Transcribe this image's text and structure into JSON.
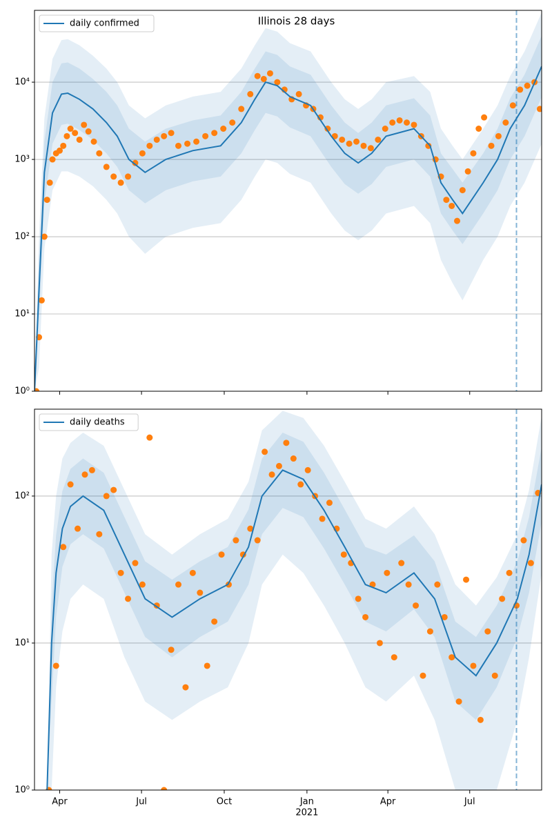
{
  "chart_data": [
    {
      "type": "line",
      "title": "Illinois 28 days",
      "xlim": [
        0,
        564
      ],
      "ylim": [
        1,
        85000
      ],
      "log_y": true,
      "grid": "y",
      "legend": "upper left",
      "vline": 536,
      "yticks": [
        {
          "value": 1,
          "label": "10⁰"
        },
        {
          "value": 10,
          "label": "10¹"
        },
        {
          "value": 100,
          "label": "10²"
        },
        {
          "value": 1000,
          "label": "10³"
        },
        {
          "value": 10000,
          "label": "10⁴"
        }
      ],
      "series": [
        {
          "name": "daily confirmed",
          "color": "#1f77b4",
          "x": [
            0,
            5,
            11,
            20,
            30,
            37,
            50,
            65,
            80,
            92,
            105,
            123,
            146,
            176,
            207,
            230,
            245,
            257,
            270,
            284,
            307,
            330,
            345,
            360,
            375,
            391,
            422,
            440,
            452,
            465,
            476,
            499,
            515,
            529,
            545,
            564
          ],
          "values": [
            1,
            20,
            680,
            4000,
            7000,
            7200,
            6000,
            4500,
            3000,
            2000,
            1000,
            680,
            1000,
            1300,
            1500,
            3000,
            6000,
            10000,
            9000,
            6500,
            5000,
            2000,
            1200,
            900,
            1200,
            2000,
            2500,
            1500,
            500,
            300,
            200,
            500,
            1000,
            2500,
            5000,
            16000
          ],
          "bands": [
            {
              "lower": [
                1,
                2,
                70,
                400,
                700,
                700,
                600,
                450,
                300,
                200,
                100,
                60,
                100,
                130,
                150,
                300,
                600,
                1000,
                900,
                650,
                500,
                200,
                120,
                90,
                120,
                200,
                250,
                150,
                50,
                25,
                15,
                50,
                100,
                250,
                500,
                1600
              ],
              "upper": [
                1,
                100,
                3400,
                20000,
                35000,
                36000,
                30000,
                22000,
                15000,
                10000,
                5000,
                3400,
                5000,
                6500,
                7500,
                15000,
                30000,
                50000,
                45000,
                32000,
                25000,
                10000,
                6000,
                4500,
                6000,
                10000,
                12000,
                7500,
                2500,
                1500,
                1000,
                2500,
                5000,
                12000,
                25000,
                80000
              ]
            },
            {
              "lower": [
                1,
                8,
                270,
                1600,
                2800,
                2900,
                2400,
                1800,
                1200,
                800,
                400,
                270,
                400,
                520,
                600,
                1200,
                2400,
                4000,
                3600,
                2600,
                2000,
                800,
                480,
                360,
                480,
                800,
                1000,
                600,
                200,
                120,
                80,
                200,
                400,
                1000,
                2000,
                6400
              ],
              "upper": [
                1,
                50,
                1700,
                10000,
                17500,
                18000,
                15000,
                11000,
                7500,
                5000,
                2500,
                1700,
                2500,
                3200,
                3700,
                7500,
                15000,
                25000,
                22500,
                16000,
                12500,
                5000,
                3000,
                2200,
                3000,
                5000,
                6200,
                3700,
                1200,
                750,
                500,
                1200,
                2500,
                6200,
                12500,
                40000
              ]
            }
          ]
        }
      ],
      "points": {
        "color": "#ff7f0e",
        "x": [
          2,
          5,
          8,
          11,
          14,
          17,
          20,
          24,
          28,
          32,
          36,
          40,
          45,
          50,
          55,
          60,
          66,
          72,
          80,
          88,
          96,
          104,
          112,
          120,
          128,
          136,
          144,
          152,
          160,
          170,
          180,
          190,
          200,
          210,
          220,
          230,
          240,
          248,
          255,
          262,
          270,
          278,
          286,
          294,
          302,
          310,
          318,
          326,
          334,
          342,
          350,
          358,
          366,
          374,
          382,
          390,
          398,
          406,
          414,
          422,
          430,
          438,
          446,
          452,
          458,
          464,
          470,
          476,
          482,
          488,
          494,
          500,
          508,
          516,
          524,
          532,
          540,
          548,
          556,
          562
        ],
        "values": [
          1,
          5,
          15,
          100,
          300,
          500,
          1000,
          1200,
          1300,
          1500,
          2000,
          2500,
          2200,
          1800,
          2800,
          2300,
          1700,
          1200,
          800,
          600,
          500,
          600,
          900,
          1200,
          1500,
          1800,
          2000,
          2200,
          1500,
          1600,
          1700,
          2000,
          2200,
          2500,
          3000,
          4500,
          7000,
          12000,
          11000,
          13000,
          10000,
          8000,
          6000,
          7000,
          5000,
          4500,
          3500,
          2500,
          2000,
          1800,
          1600,
          1700,
          1500,
          1400,
          1800,
          2500,
          3000,
          3200,
          3000,
          2800,
          2000,
          1500,
          1000,
          600,
          300,
          250,
          160,
          400,
          700,
          1200,
          2500,
          3500,
          1500,
          2000,
          3000,
          5000,
          8000,
          9000,
          10000,
          4500
        ]
      }
    },
    {
      "type": "line",
      "xlim": [
        0,
        564
      ],
      "ylim": [
        1,
        390
      ],
      "log_y": true,
      "grid": "y",
      "legend": "upper left",
      "vline": 536,
      "xticks": [
        {
          "value": 28,
          "label": "Apr"
        },
        {
          "value": 119,
          "label": "Jul"
        },
        {
          "value": 211,
          "label": "Oct"
        },
        {
          "value": 303,
          "label": "Jan"
        },
        {
          "value": 393,
          "label": "Apr"
        },
        {
          "value": 484,
          "label": "Jul"
        }
      ],
      "xtick_sublabel": "2021",
      "yticks": [
        {
          "value": 1,
          "label": "10⁰"
        },
        {
          "value": 10,
          "label": "10¹"
        },
        {
          "value": 100,
          "label": "10²"
        }
      ],
      "series": [
        {
          "name": "daily deaths",
          "color": "#1f77b4",
          "x": [
            14,
            19,
            24,
            31,
            40,
            54,
            77,
            100,
            123,
            153,
            184,
            215,
            238,
            253,
            276,
            299,
            322,
            345,
            368,
            391,
            422,
            445,
            468,
            491,
            514,
            537,
            550,
            564
          ],
          "values": [
            1,
            10,
            30,
            60,
            85,
            100,
            80,
            40,
            20,
            15,
            20,
            25,
            45,
            100,
            150,
            130,
            80,
            45,
            25,
            22,
            30,
            20,
            8,
            6,
            10,
            20,
            40,
            120
          ],
          "bands": [
            {
              "lower": [
                1,
                1,
                5,
                12,
                20,
                25,
                20,
                8,
                4,
                3,
                4,
                5,
                10,
                25,
                40,
                30,
                18,
                10,
                5,
                4,
                6,
                3,
                1,
                1,
                1,
                3,
                8,
                30
              ],
              "upper": [
                1,
                40,
                100,
                180,
                230,
                270,
                220,
                110,
                55,
                40,
                55,
                70,
                125,
                280,
                380,
                340,
                220,
                125,
                70,
                60,
                85,
                55,
                25,
                18,
                28,
                55,
                110,
                350
              ]
            },
            {
              "lower": [
                1,
                4,
                15,
                33,
                47,
                55,
                44,
                22,
                11,
                8,
                11,
                14,
                25,
                55,
                83,
                72,
                44,
                25,
                14,
                12,
                17,
                11,
                4,
                3,
                5,
                11,
                22,
                67
              ],
              "upper": [
                1,
                18,
                54,
                108,
                153,
                180,
                144,
                72,
                36,
                27,
                36,
                45,
                81,
                180,
                270,
                234,
                144,
                81,
                45,
                40,
                54,
                36,
                14,
                11,
                18,
                36,
                72,
                216
              ]
            }
          ]
        }
      ],
      "points": {
        "color": "#ff7f0e",
        "x": [
          16,
          24,
          32,
          40,
          48,
          56,
          64,
          72,
          80,
          88,
          96,
          104,
          112,
          120,
          128,
          136,
          144,
          152,
          160,
          168,
          176,
          184,
          192,
          200,
          208,
          216,
          224,
          232,
          240,
          248,
          256,
          264,
          272,
          280,
          288,
          296,
          304,
          312,
          320,
          328,
          336,
          344,
          352,
          360,
          368,
          376,
          384,
          392,
          400,
          408,
          416,
          424,
          432,
          440,
          448,
          456,
          464,
          472,
          480,
          488,
          496,
          504,
          512,
          520,
          528,
          536,
          544,
          552,
          560
        ],
        "values": [
          1,
          7,
          45,
          120,
          60,
          140,
          150,
          55,
          100,
          110,
          30,
          20,
          35,
          25,
          250,
          18,
          1,
          9,
          25,
          5,
          30,
          22,
          7,
          14,
          40,
          25,
          50,
          40,
          60,
          50,
          200,
          140,
          160,
          230,
          180,
          120,
          150,
          100,
          70,
          90,
          60,
          40,
          35,
          20,
          15,
          25,
          10,
          30,
          8,
          35,
          25,
          18,
          6,
          12,
          25,
          15,
          8,
          4,
          27,
          7,
          3,
          12,
          6,
          20,
          30,
          18,
          50,
          35,
          105
        ]
      }
    }
  ]
}
